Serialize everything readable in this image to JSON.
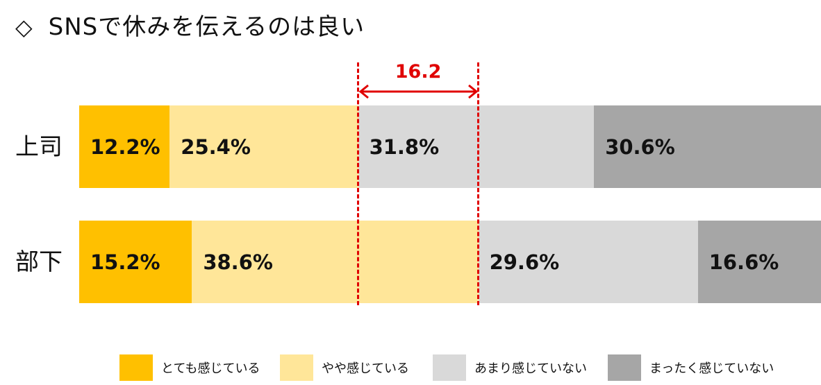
{
  "title": "SNSで休みを伝えるのは良い",
  "title_marker": "◇",
  "chart_data": {
    "type": "bar",
    "orientation": "horizontal-stacked-100",
    "categories": [
      "上司",
      "部下"
    ],
    "series": [
      {
        "name": "とても感じている",
        "color": "#FFC000",
        "values": [
          12.2,
          15.2
        ],
        "labels": [
          "12.2%",
          "15.2%"
        ]
      },
      {
        "name": "やや感じている",
        "color": "#FFE699",
        "values": [
          25.4,
          38.6
        ],
        "labels": [
          "25.4%",
          "38.6%"
        ]
      },
      {
        "name": "あまり感じていない",
        "color": "#D9D9D9",
        "values": [
          31.8,
          29.6
        ],
        "labels": [
          "31.8%",
          "29.6%"
        ]
      },
      {
        "name": "まったく感じていない",
        "color": "#A6A6A6",
        "values": [
          30.6,
          16.6
        ],
        "labels": [
          "30.6%",
          "16.6%"
        ]
      }
    ],
    "annotation": {
      "text": "16.2",
      "color": "#E00000",
      "from": 37.6,
      "to": 53.8
    },
    "legend": "bottom"
  }
}
